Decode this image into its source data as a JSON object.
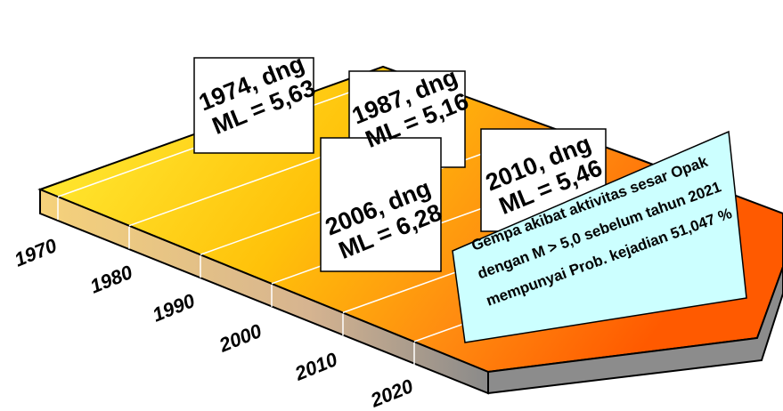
{
  "timeline": {
    "axis_labels": [
      "1970",
      "1980",
      "1990",
      "2000",
      "2010",
      "2020"
    ],
    "events": [
      {
        "year": "1974, dng",
        "magnitude": "ML = 5,63"
      },
      {
        "year": "1987, dng",
        "magnitude": "ML = 5,16"
      },
      {
        "year": "2006, dng",
        "magnitude": "ML = 6,28"
      },
      {
        "year": "2010, dng",
        "magnitude": "ML = 5,46"
      }
    ],
    "note": [
      "Gempa akibat aktivitas sesar Opak",
      "dengan M > 5,0 sebelum tahun 2021",
      "mempunyai Prob. kejadian 51,047 %"
    ]
  }
}
